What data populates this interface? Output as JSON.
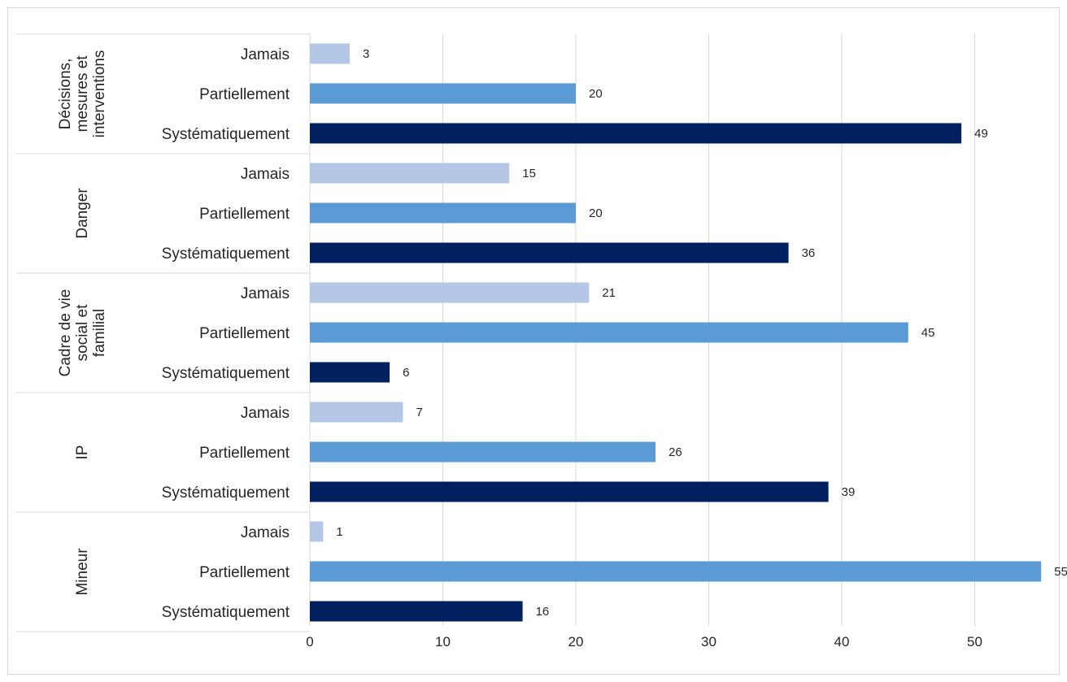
{
  "chart_data": {
    "type": "bar",
    "orientation": "horizontal",
    "xlim": [
      0,
      55
    ],
    "x_ticks": [
      "0",
      "10",
      "20",
      "30",
      "40",
      "50"
    ],
    "grid": true,
    "legend": "none",
    "colors": {
      "Jamais": "#b4c7e7",
      "Partiellement": "#5b9bd5",
      "Systématiquement": "#002060"
    },
    "groups": [
      {
        "name": "Décisions, mesures et interventions",
        "name_lines": [
          "Décisions,",
          "mesures et",
          "interventions"
        ],
        "bars": [
          {
            "label": "Jamais",
            "value": 3
          },
          {
            "label": "Partiellement",
            "value": 20
          },
          {
            "label": "Systématiquement",
            "value": 49
          }
        ]
      },
      {
        "name": "Danger",
        "name_lines": [
          "Danger"
        ],
        "bars": [
          {
            "label": "Jamais",
            "value": 15
          },
          {
            "label": "Partiellement",
            "value": 20
          },
          {
            "label": "Systématiquement",
            "value": 36
          }
        ]
      },
      {
        "name": "Cadre de vie social et familial",
        "name_lines": [
          "Cadre de vie",
          "social et",
          "familial"
        ],
        "bars": [
          {
            "label": "Jamais",
            "value": 21
          },
          {
            "label": "Partiellement",
            "value": 45
          },
          {
            "label": "Systématiquement",
            "value": 6
          }
        ]
      },
      {
        "name": "IP",
        "name_lines": [
          "IP"
        ],
        "bars": [
          {
            "label": "Jamais",
            "value": 7
          },
          {
            "label": "Partiellement",
            "value": 26
          },
          {
            "label": "Systématiquement",
            "value": 39
          }
        ]
      },
      {
        "name": "Mineur",
        "name_lines": [
          "Mineur"
        ],
        "bars": [
          {
            "label": "Jamais",
            "value": 1
          },
          {
            "label": "Partiellement",
            "value": 55
          },
          {
            "label": "Systématiquement",
            "value": 16
          }
        ]
      }
    ]
  }
}
